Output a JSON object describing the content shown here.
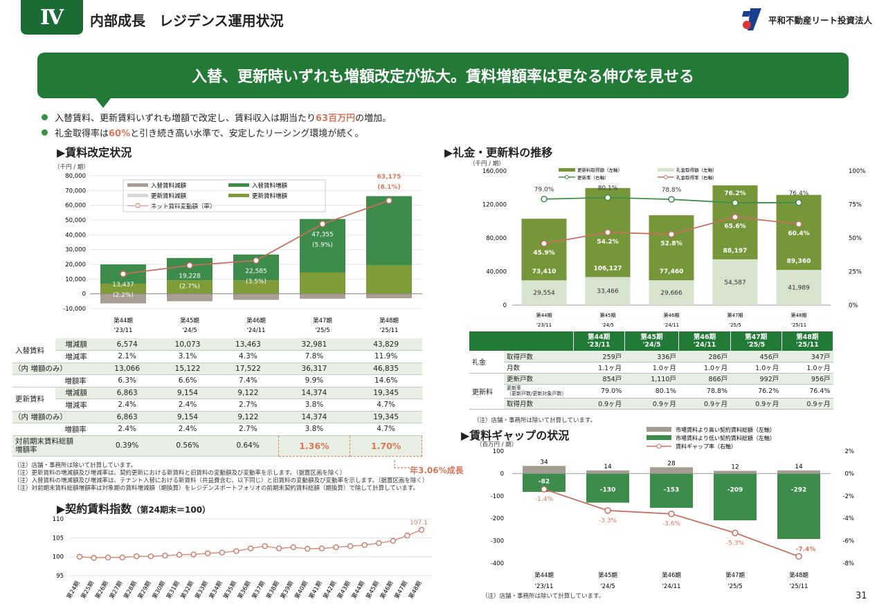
{
  "header": {
    "section": "Ⅳ",
    "title": "内部成長　レジデンス運用状況",
    "company": "平和不動産リート投資法人",
    "page_number": "31"
  },
  "banner": "入替、更新時いずれも増額改定が拡大。賃料増額率は更なる伸びを見せる",
  "bullets": [
    {
      "pre": "入替賃料、更新賃料いずれも増額で改定し、賃料収入は期当たり",
      "highlight": "63百万円",
      "post": "の増加。"
    },
    {
      "pre": "礼金取得率は",
      "highlight": "60%",
      "post": "と引き続き高い水準で、安定したリーシング環境が続く。"
    }
  ],
  "rent_revision": {
    "title": "▶賃料改定状況",
    "unit": "（千円 / 期）",
    "legend": [
      "入替賃料減額",
      "入替賃料増額",
      "更新賃料減額",
      "更新賃料増額",
      "ネット賃料変動額（率）"
    ],
    "table": {
      "groups": [
        "入替賃料",
        "更新賃料"
      ],
      "rows": [
        {
          "group": "入替賃料",
          "label": "増減額",
          "values": [
            "6,574",
            "10,073",
            "13,463",
            "32,981",
            "43,829"
          ]
        },
        {
          "group": "入替賃料",
          "label": "増減率",
          "values": [
            "2.1%",
            "3.1%",
            "4.3%",
            "7.8%",
            "11.9%"
          ]
        },
        {
          "group": "",
          "label": "（内 増額のみ）",
          "values": [
            "13,066",
            "15,122",
            "17,522",
            "36,317",
            "46,835"
          ]
        },
        {
          "group": "",
          "label": "増額率",
          "values": [
            "6.3%",
            "6.6%",
            "7.4%",
            "9.9%",
            "14.6%"
          ]
        },
        {
          "group": "更新賃料",
          "label": "増減額",
          "values": [
            "6,863",
            "9,154",
            "9,122",
            "14,374",
            "19,345"
          ]
        },
        {
          "group": "更新賃料",
          "label": "増減率",
          "values": [
            "2.4%",
            "2.4%",
            "2.7%",
            "3.8%",
            "4.7%"
          ]
        },
        {
          "group": "",
          "label": "（内 増額のみ）",
          "values": [
            "6,863",
            "9,154",
            "9,122",
            "14,374",
            "19,345"
          ]
        },
        {
          "group": "",
          "label": "増額率",
          "values": [
            "2.4%",
            "2.4%",
            "2.7%",
            "3.8%",
            "4.7%"
          ]
        }
      ],
      "last_label_1": "対前期末賃料総額",
      "last_label_2": "増額率",
      "last_values": [
        "0.39%",
        "0.56%",
        "0.64%",
        "1.36%",
        "1.70%"
      ],
      "growth_note": "年3.06%成長"
    },
    "notes": [
      "（注）店舗・事務所は除いて計算しています。",
      "（注）更新賃料の増減額及び増減率は、契約更新における新賃料と旧賃料の変動額及び変動率を示します。（据置区画を除く）",
      "（注）入替賃料の増減額及び増減率は、テナント入替における新賃料（共益費含む、以下同じ）と旧賃料の変動額及び変動率を示します。（据置区画を除く）",
      "（注）対前期末賃料総額増額率は対象期の賃料増減額（期換算）をレジデンスポートフォリオの前期末契約賃料総額（期換算）で除して計算しています。"
    ]
  },
  "key_money": {
    "title": "▶礼金・更新料の推移",
    "unit": "（千円 / 期）",
    "legend": [
      "更新料取得額（左軸）",
      "礼金取得額（左軸）",
      "更新率（右軸）",
      "礼金取得率（右軸）"
    ],
    "table": {
      "headers": [
        [
          "第44期",
          "'23/11"
        ],
        [
          "第45期",
          "'24/5"
        ],
        [
          "第46期",
          "'24/11"
        ],
        [
          "第47期",
          "'25/5"
        ],
        [
          "第48期",
          "'25/11"
        ]
      ],
      "groups": [
        "礼金",
        "更新料"
      ],
      "rows": [
        {
          "label": "取得戸数",
          "values": [
            "259戸",
            "336戸",
            "286戸",
            "456戸",
            "347戸"
          ]
        },
        {
          "label": "月数",
          "values": [
            "1.1ヶ月",
            "1.0ヶ月",
            "1.0ヶ月",
            "1.0ヶ月",
            "1.0ヶ月"
          ]
        },
        {
          "label": "更新戸数",
          "values": [
            "854戸",
            "1,110戸",
            "866戸",
            "992戸",
            "956戸"
          ]
        },
        {
          "label": "更新率",
          "sublabel": "（更新戸数/更新対象戸数）",
          "values": [
            "79.0%",
            "80.1%",
            "78.8%",
            "76.2%",
            "76.4%"
          ]
        },
        {
          "label": "取得月数",
          "values": [
            "0.9ヶ月",
            "0.9ヶ月",
            "0.9ヶ月",
            "0.9ヶ月",
            "0.9ヶ月"
          ]
        }
      ]
    },
    "note": "（注）店舗・事務所は除いて計算しています。"
  },
  "rent_gap": {
    "title": "▶賃料ギャップの状況",
    "unit": "（百万円 / 期）",
    "legend": [
      "市場賃料より高い契約賃料総額（左軸）",
      "市場賃料より低い契約賃料総額（左軸）",
      "賃料ギャップ率（右軸）"
    ],
    "note": "（注）店舗・事務所は除いて計算しています。"
  },
  "rent_index": {
    "title": "▶契約賃料指数",
    "subtitle": "（第24期末＝100）"
  },
  "chart_data": [
    {
      "name": "rent_revision",
      "type": "bar",
      "categories": [
        "第44期",
        "第45期",
        "第46期",
        "第47期",
        "第48期"
      ],
      "subcategories": [
        "'23/11",
        "'24/5",
        "'24/11",
        "'25/5",
        "'25/11"
      ],
      "series": [
        {
          "name": "入替賃料減額",
          "values": [
            -6492,
            -5049,
            -4059,
            -3336,
            -3006
          ],
          "color": "#a89e91"
        },
        {
          "name": "入替賃料増額",
          "values": [
            13066,
            15122,
            17522,
            36317,
            46835
          ],
          "color": "#3d8c4c"
        },
        {
          "name": "更新賃料減額",
          "values": [
            0,
            0,
            0,
            0,
            0
          ],
          "color": "#d8d8d8"
        },
        {
          "name": "更新賃料増額",
          "values": [
            6863,
            9154,
            9122,
            14374,
            19345
          ],
          "color": "#7f9c38"
        },
        {
          "name": "ネット賃料変動額（率）",
          "values": [
            13437,
            19228,
            22585,
            47355,
            63175
          ],
          "color": "#c8705f"
        }
      ],
      "net_labels": [
        "13,437",
        "19,228",
        "22,585",
        "47,355",
        "63,175"
      ],
      "net_rates": [
        "(2.2%)",
        "(2.7%)",
        "(3.5%)",
        "(5.9%)",
        "(8.1%)"
      ],
      "yticks": [
        "80,000",
        "70,000",
        "60,000",
        "50,000",
        "40,000",
        "30,000",
        "20,000",
        "10,000",
        "0",
        "-10,000"
      ],
      "ylim": [
        -10000,
        80000
      ]
    },
    {
      "name": "key_money",
      "type": "bar",
      "categories": [
        "第44期",
        "第45期",
        "第46期",
        "第47期",
        "第48期"
      ],
      "subcategories": [
        "'23/11",
        "'24/5",
        "'24/11",
        "'25/5",
        "'25/11"
      ],
      "series": [
        {
          "name": "礼金取得額（左軸）",
          "values": [
            29554,
            33466,
            29666,
            54587,
            41989
          ],
          "labels": [
            "29,554",
            "33,466",
            "29,666",
            "54,587",
            "41,989"
          ],
          "color": "#d6e3cd"
        },
        {
          "name": "更新料取得額（左軸）",
          "values": [
            73410,
            106127,
            77460,
            88197,
            89360
          ],
          "labels": [
            "73,410",
            "106,127",
            "77,460",
            "88,197",
            "89,360"
          ],
          "color": "#75973a"
        },
        {
          "name": "更新率（右軸）",
          "values": [
            79.0,
            80.1,
            78.8,
            76.2,
            76.4
          ],
          "labels": [
            "79.0%",
            "80.1%",
            "78.8%",
            "76.2%",
            "76.4%"
          ],
          "color": "#3e8c4a"
        },
        {
          "name": "礼金取得率（右軸）",
          "values": [
            45.9,
            54.2,
            52.8,
            65.6,
            60.4
          ],
          "labels": [
            "45.9%",
            "54.2%",
            "52.8%",
            "65.6%",
            "60.4%"
          ],
          "color": "#c8705f"
        }
      ],
      "yticks": [
        "160,000",
        "120,000",
        "80,000",
        "40,000",
        "0"
      ],
      "y2ticks": [
        "100%",
        "75%",
        "50%",
        "25%",
        "0%"
      ],
      "ylim": [
        0,
        160000
      ],
      "y2lim": [
        0,
        100
      ]
    },
    {
      "name": "rent_gap",
      "type": "bar",
      "categories": [
        "第44期",
        "第45期",
        "第46期",
        "第47期",
        "第48期"
      ],
      "subcategories": [
        "'23/11",
        "'24/5",
        "'24/11",
        "'25/5",
        "'25/11"
      ],
      "series": [
        {
          "name": "市場賃料より高い契約賃料総額（左軸）",
          "values": [
            34,
            14,
            28,
            12,
            14
          ],
          "labels": [
            "34",
            "14",
            "28",
            "12",
            "14"
          ],
          "color": "#a39c90"
        },
        {
          "name": "市場賃料より低い契約賃料総額（左軸）",
          "values": [
            -82,
            -130,
            -153,
            -209,
            -292
          ],
          "labels": [
            "-82",
            "-130",
            "-153",
            "-209",
            "-292"
          ],
          "color": "#3d8c4c"
        },
        {
          "name": "賃料ギャップ率（右軸）",
          "values": [
            -1.4,
            -3.3,
            -3.6,
            -5.3,
            -7.4
          ],
          "labels": [
            "-1.4%",
            "-3.3%",
            "-3.6%",
            "-5.3%",
            "-7.4%"
          ],
          "color": "#c8705f"
        }
      ],
      "yticks": [
        "100",
        "0",
        "-100",
        "-200",
        "-300",
        "-400"
      ],
      "y2ticks": [
        "2%",
        "0%",
        "-2%",
        "-4%",
        "-6%",
        "-8%"
      ],
      "ylim": [
        -400,
        100
      ],
      "y2lim": [
        -8,
        2
      ]
    },
    {
      "name": "rent_index",
      "type": "line",
      "categories": [
        "第24期",
        "第25期",
        "第26期",
        "第27期",
        "第28期",
        "第29期",
        "第30期",
        "第31期",
        "第32期",
        "第33期",
        "第34期",
        "第35期",
        "第36期",
        "第37期",
        "第38期",
        "第39期",
        "第40期",
        "第41期",
        "第42期",
        "第43期",
        "第44期",
        "第45期",
        "第46期",
        "第47期",
        "第48期"
      ],
      "values": [
        100.0,
        99.7,
        99.8,
        99.8,
        100.1,
        100.1,
        100.3,
        100.5,
        100.6,
        100.9,
        101.1,
        101.5,
        102.2,
        102.8,
        102.2,
        102.5,
        102.1,
        102.2,
        102.5,
        102.8,
        103.1,
        103.6,
        104.2,
        105.6,
        107.1
      ],
      "last_label": "107.1",
      "yticks": [
        "110",
        "105",
        "100",
        "95"
      ],
      "ylim": [
        95,
        110
      ]
    }
  ]
}
